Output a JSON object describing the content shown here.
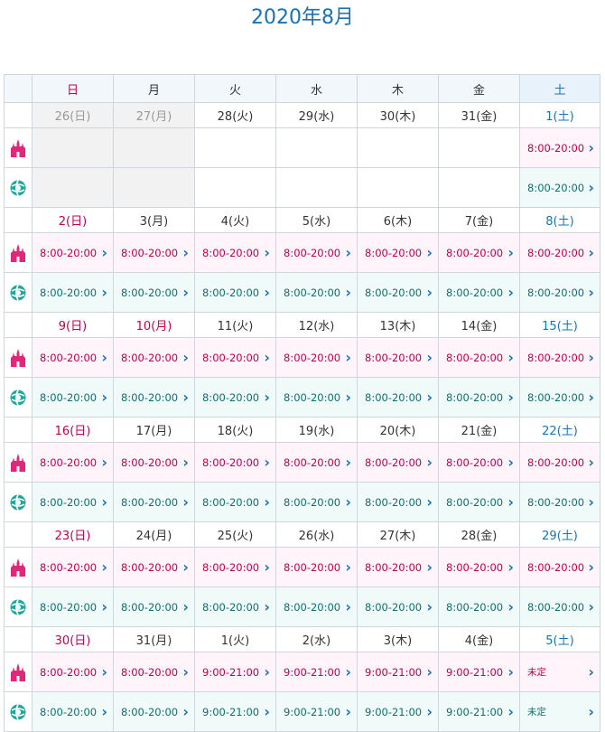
{
  "title": "2020年8月",
  "weekdays": [
    "日",
    "月",
    "火",
    "水",
    "木",
    "金",
    "土"
  ],
  "colors": {
    "accent": "#1a72b5",
    "sunday": "#c0004b",
    "land_bg": "#fff4f9",
    "sea_bg": "#f0fbf9",
    "sea_text": "#0f6f70"
  },
  "icons": {
    "land": "castle-icon",
    "sea": "globe-icon",
    "arrow": "chevron-right-icon"
  },
  "weeks": [
    {
      "dates": [
        "26(日)",
        "27(月)",
        "28(火)",
        "29(水)",
        "30(木)",
        "31(金)",
        "1(土)"
      ],
      "land": [
        "",
        "",
        "",
        "",
        "",
        "",
        "8:00-20:00"
      ],
      "sea": [
        "",
        "",
        "",
        "",
        "",
        "",
        "8:00-20:00"
      ]
    },
    {
      "dates": [
        "2(日)",
        "3(月)",
        "4(火)",
        "5(水)",
        "6(木)",
        "7(金)",
        "8(土)"
      ],
      "land": [
        "8:00-20:00",
        "8:00-20:00",
        "8:00-20:00",
        "8:00-20:00",
        "8:00-20:00",
        "8:00-20:00",
        "8:00-20:00"
      ],
      "sea": [
        "8:00-20:00",
        "8:00-20:00",
        "8:00-20:00",
        "8:00-20:00",
        "8:00-20:00",
        "8:00-20:00",
        "8:00-20:00"
      ]
    },
    {
      "dates": [
        "9(日)",
        "10(月)",
        "11(火)",
        "12(水)",
        "13(木)",
        "14(金)",
        "15(土)"
      ],
      "land": [
        "8:00-20:00",
        "8:00-20:00",
        "8:00-20:00",
        "8:00-20:00",
        "8:00-20:00",
        "8:00-20:00",
        "8:00-20:00"
      ],
      "sea": [
        "8:00-20:00",
        "8:00-20:00",
        "8:00-20:00",
        "8:00-20:00",
        "8:00-20:00",
        "8:00-20:00",
        "8:00-20:00"
      ]
    },
    {
      "dates": [
        "16(日)",
        "17(月)",
        "18(火)",
        "19(水)",
        "20(木)",
        "21(金)",
        "22(土)"
      ],
      "land": [
        "8:00-20:00",
        "8:00-20:00",
        "8:00-20:00",
        "8:00-20:00",
        "8:00-20:00",
        "8:00-20:00",
        "8:00-20:00"
      ],
      "sea": [
        "8:00-20:00",
        "8:00-20:00",
        "8:00-20:00",
        "8:00-20:00",
        "8:00-20:00",
        "8:00-20:00",
        "8:00-20:00"
      ]
    },
    {
      "dates": [
        "23(日)",
        "24(月)",
        "25(火)",
        "26(水)",
        "27(木)",
        "28(金)",
        "29(土)"
      ],
      "land": [
        "8:00-20:00",
        "8:00-20:00",
        "8:00-20:00",
        "8:00-20:00",
        "8:00-20:00",
        "8:00-20:00",
        "8:00-20:00"
      ],
      "sea": [
        "8:00-20:00",
        "8:00-20:00",
        "8:00-20:00",
        "8:00-20:00",
        "8:00-20:00",
        "8:00-20:00",
        "8:00-20:00"
      ]
    },
    {
      "dates": [
        "30(日)",
        "31(月)",
        "1(火)",
        "2(水)",
        "3(木)",
        "4(金)",
        "5(土)"
      ],
      "land": [
        "8:00-20:00",
        "8:00-20:00",
        "9:00-21:00",
        "9:00-21:00",
        "9:00-21:00",
        "9:00-21:00",
        "未定"
      ],
      "sea": [
        "8:00-20:00",
        "8:00-20:00",
        "9:00-21:00",
        "9:00-21:00",
        "9:00-21:00",
        "9:00-21:00",
        "未定"
      ]
    }
  ]
}
